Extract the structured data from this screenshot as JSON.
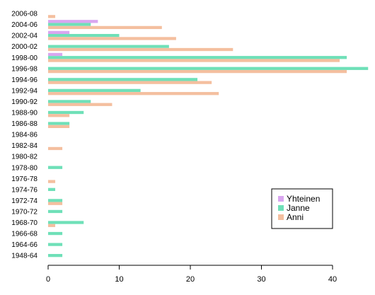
{
  "chart_data": {
    "type": "bar",
    "orientation": "horizontal",
    "categories": [
      "2006-08",
      "2004-06",
      "2002-04",
      "2000-02",
      "1998-00",
      "1996-98",
      "1994-96",
      "1992-94",
      "1990-92",
      "1988-90",
      "1986-88",
      "1984-86",
      "1982-84",
      "1980-82",
      "1978-80",
      "1976-78",
      "1974-76",
      "1972-74",
      "1970-72",
      "1968-70",
      "1966-68",
      "1964-66",
      "1948-64"
    ],
    "series": [
      {
        "name": "Yhteinen",
        "color": "#d9a6f0",
        "values": [
          0,
          7,
          3,
          0,
          2,
          0,
          0,
          0,
          0,
          0,
          0,
          0,
          0,
          0,
          0,
          0,
          0,
          0,
          0,
          0,
          0,
          0,
          0
        ]
      },
      {
        "name": "Janne",
        "color": "#6fe0b8",
        "values": [
          0,
          6,
          10,
          17,
          42,
          45,
          21,
          13,
          6,
          5,
          3,
          0,
          0,
          0,
          2,
          0,
          1,
          2,
          2,
          5,
          2,
          2,
          2
        ]
      },
      {
        "name": "Anni",
        "color": "#f4bf9f",
        "values": [
          1,
          16,
          18,
          26,
          41,
          42,
          23,
          24,
          9,
          3,
          3,
          0,
          2,
          0,
          0,
          1,
          0,
          2,
          0,
          1,
          0,
          0,
          0
        ]
      }
    ],
    "xticks": [
      0,
      10,
      20,
      30,
      40
    ],
    "xlim": [
      0,
      45
    ],
    "legend_position": "bottom-right",
    "grid": false
  }
}
